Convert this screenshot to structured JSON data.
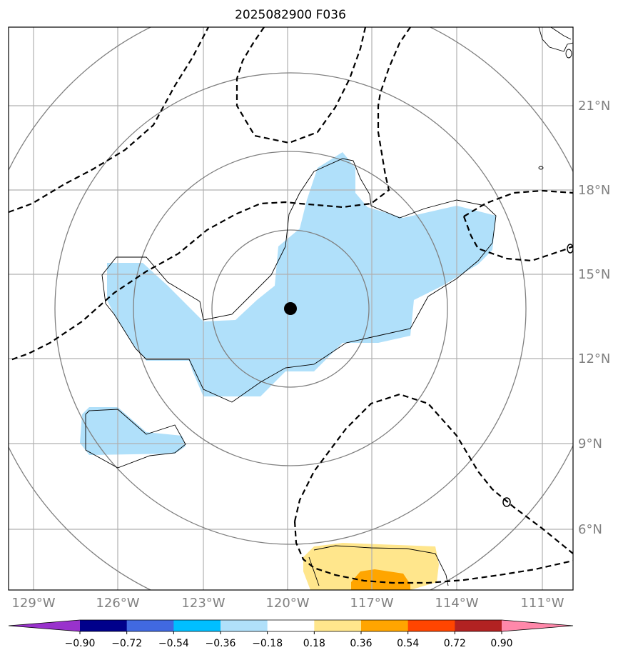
{
  "title": "2025082900 F036",
  "lat_labels": [
    "21°N",
    "18°N",
    "15°N",
    "12°N",
    "9°N",
    "6°N"
  ],
  "lon_labels": [
    "129°W",
    "126°W",
    "123°W",
    "120°W",
    "117°W",
    "114°W",
    "111°W"
  ],
  "contour_label": "0",
  "colorbar": {
    "colors": [
      "#9932cc",
      "#00008b",
      "#4169e1",
      "#00bfff",
      "#b0e0fa",
      "#ffffff",
      "#ffe68c",
      "#ffa500",
      "#ff4500",
      "#b22222",
      "#ff88aa"
    ],
    "ticks": [
      "−0.90",
      "−0.72",
      "−0.54",
      "−0.36",
      "−0.18",
      "0.18",
      "0.36",
      "0.54",
      "0.72",
      "0.90"
    ]
  },
  "storm_center": {
    "lon": "120°W",
    "lat": "13.8°N"
  },
  "icons": [
    "storm-center-dot"
  ]
}
